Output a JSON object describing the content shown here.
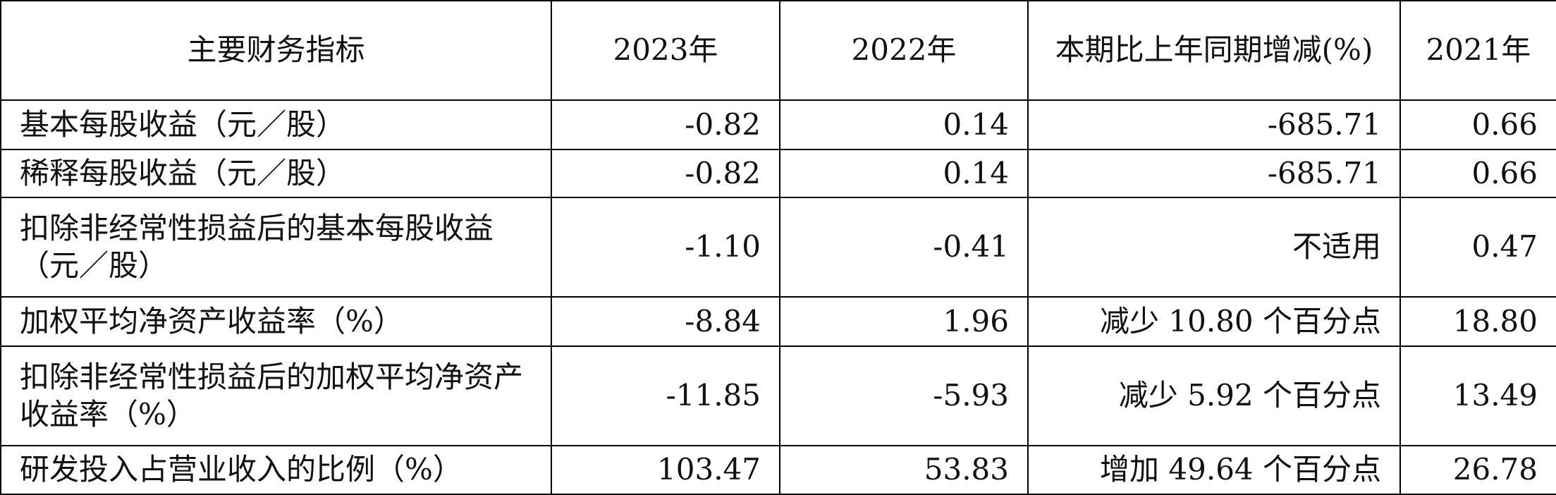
{
  "table": {
    "header": [
      "主要财务指标",
      "2023年",
      "2022年",
      "本期比上年同期增减(%)",
      "2021年"
    ],
    "rows": [
      [
        "基本每股收益（元／股）",
        "-0.82",
        "0.14",
        "-685.71",
        "0.66"
      ],
      [
        "稀释每股收益（元／股）",
        "-0.82",
        "0.14",
        "-685.71",
        "0.66"
      ],
      [
        "扣除非经常性损益后的基本每股收益（元／股）",
        "-1.10",
        "-0.41",
        "不适用",
        "0.47"
      ],
      [
        "加权平均净资产收益率（%）",
        "-8.84",
        "1.96",
        "减少 10.80 个百分点",
        "18.80"
      ],
      [
        "扣除非经常性损益后的加权平均净资产收益率（%）",
        "-11.85",
        "-5.93",
        "减少 5.92 个百分点",
        "13.49"
      ],
      [
        "研发投入占营业收入的比例（%）",
        "103.47",
        "53.83",
        "增加 49.64 个百分点",
        "26.78"
      ]
    ]
  }
}
